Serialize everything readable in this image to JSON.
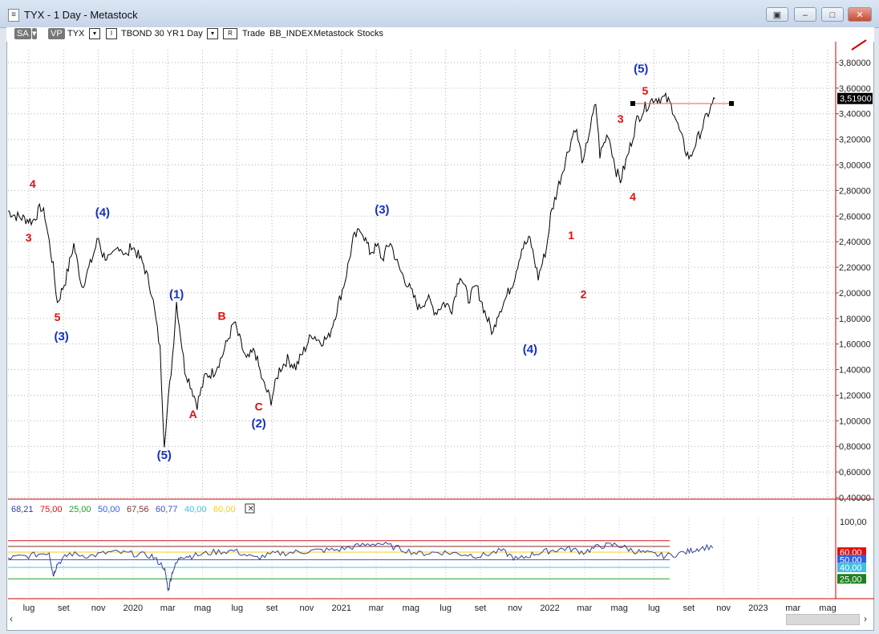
{
  "window": {
    "title": "TYX - 1 Day - Metastock",
    "app_icon": "chart-doc-icon"
  },
  "toolbar": {
    "sa": "SA",
    "vp": "VP",
    "symbol": "TYX",
    "i_box": "I",
    "description": "TBOND 30 YR",
    "period": "1 Day",
    "r_box": "R",
    "trade": "Trade",
    "index": "BB_INDEX",
    "source": "Metastock",
    "category": "Stocks"
  },
  "chart_data": [
    {
      "type": "line",
      "title": "",
      "xlabel": "",
      "ylabel": "",
      "ylim": [
        0.4,
        3.9
      ],
      "grid": true,
      "x_ticks": [
        "lug",
        "set",
        "nov",
        "2020",
        "mar",
        "mag",
        "lug",
        "set",
        "nov",
        "2021",
        "mar",
        "mag",
        "lug",
        "set",
        "nov",
        "2022",
        "mar",
        "mag",
        "lug",
        "set",
        "nov",
        "2023",
        "mar",
        "mag"
      ],
      "y_ticks": [
        "0,40000",
        "0,60000",
        "0,80000",
        "1,00000",
        "1,20000",
        "1,40000",
        "1,60000",
        "1,80000",
        "2,00000",
        "2,20000",
        "2,40000",
        "2,60000",
        "2,80000",
        "3,00000",
        "3,20000",
        "3,40000",
        "3,60000",
        "3,80000"
      ],
      "last_value_label": "3,51900",
      "series": [
        {
          "x": [
            0,
            2,
            4,
            6,
            8,
            9,
            11,
            12,
            14,
            16,
            18,
            20,
            22,
            23,
            25,
            27,
            29,
            30,
            33,
            35,
            37,
            38,
            40,
            41,
            43,
            44,
            46,
            48,
            50,
            52,
            55,
            58,
            60,
            62,
            64,
            66,
            68,
            70,
            72,
            74,
            76,
            78,
            80,
            82,
            84,
            86,
            88,
            90,
            91,
            93,
            95,
            97,
            100,
            102,
            104,
            106,
            108,
            110,
            112,
            114,
            116,
            118,
            119,
            121,
            123,
            125,
            127,
            129,
            131,
            132,
            134,
            136,
            138,
            140,
            141,
            143,
            144,
            146,
            148,
            149,
            151,
            153,
            155,
            157,
            160,
            161,
            162,
            163,
            165,
            166,
            167,
            168,
            169,
            170,
            171,
            172
          ],
          "y": [
            2.64,
            2.6,
            2.58,
            2.56,
            2.67,
            2.6,
            2.2,
            1.92,
            2.1,
            2.38,
            2.05,
            2.22,
            2.43,
            2.3,
            2.26,
            2.37,
            2.28,
            2.38,
            2.22,
            2.0,
            1.56,
            0.83,
            1.5,
            1.93,
            1.4,
            1.32,
            1.13,
            1.35,
            1.38,
            1.5,
            1.77,
            1.47,
            1.55,
            1.3,
            1.16,
            1.4,
            1.48,
            1.42,
            1.55,
            1.68,
            1.62,
            1.65,
            1.87,
            2.1,
            2.42,
            2.5,
            2.32,
            2.36,
            2.26,
            2.4,
            2.2,
            2.08,
            1.88,
            1.96,
            1.85,
            1.92,
            1.88,
            2.15,
            1.95,
            2.05,
            1.85,
            1.68,
            1.83,
            1.95,
            2.1,
            2.35,
            2.42,
            2.12,
            2.35,
            2.6,
            2.85,
            3.08,
            3.3,
            3.0,
            3.2,
            3.48,
            3.08,
            3.25,
            2.95,
            2.88,
            3.1,
            3.35,
            3.45,
            3.52,
            3.519,
            3.48,
            3.42,
            3.3,
            3.1,
            3.05,
            3.15,
            3.22,
            3.3,
            3.38,
            3.45,
            3.519
          ]
        }
      ],
      "annotations": [
        {
          "text": "4",
          "x": 6,
          "y": 2.82,
          "color": "red"
        },
        {
          "text": "3",
          "x": 5,
          "y": 2.4,
          "color": "red"
        },
        {
          "text": "5",
          "x": 12,
          "y": 1.78,
          "color": "red"
        },
        {
          "text": "(3)",
          "x": 13,
          "y": 1.63,
          "color": "blue"
        },
        {
          "text": "(4)",
          "x": 23,
          "y": 2.6,
          "color": "blue"
        },
        {
          "text": "(1)",
          "x": 41,
          "y": 1.96,
          "color": "blue"
        },
        {
          "text": "(5)",
          "x": 38,
          "y": 0.7,
          "color": "blue"
        },
        {
          "text": "A",
          "x": 45,
          "y": 1.02,
          "color": "red"
        },
        {
          "text": "B",
          "x": 52,
          "y": 1.79,
          "color": "red"
        },
        {
          "text": "C",
          "x": 61,
          "y": 1.08,
          "color": "red"
        },
        {
          "text": "(2)",
          "x": 61,
          "y": 0.95,
          "color": "blue"
        },
        {
          "text": "(3)",
          "x": 91,
          "y": 2.62,
          "color": "blue"
        },
        {
          "text": "(4)",
          "x": 127,
          "y": 1.53,
          "color": "blue"
        },
        {
          "text": "1",
          "x": 137,
          "y": 2.42,
          "color": "red"
        },
        {
          "text": "2",
          "x": 140,
          "y": 1.96,
          "color": "red"
        },
        {
          "text": "3",
          "x": 149,
          "y": 3.33,
          "color": "red"
        },
        {
          "text": "4",
          "x": 152,
          "y": 2.72,
          "color": "red"
        },
        {
          "text": "5",
          "x": 155,
          "y": 3.55,
          "color": "red"
        },
        {
          "text": "(5)",
          "x": 154,
          "y": 3.72,
          "color": "blue"
        }
      ],
      "trendline": {
        "from_x": 152,
        "to_x": 176,
        "y": 3.48,
        "color": "#e06030"
      }
    },
    {
      "type": "line",
      "title": "",
      "legend": [
        "68,21",
        "75,00",
        "25,00",
        "50,00",
        "67,56",
        "60,77",
        "40,00",
        "60,00"
      ],
      "y_tick_labels": [
        "100,00",
        "60,00",
        "50,00",
        "40,00",
        "25,00"
      ],
      "series": [
        {
          "x": [
            0,
            5,
            10,
            11,
            12,
            15,
            20,
            25,
            30,
            35,
            38,
            39,
            40,
            42,
            45,
            50,
            55,
            60,
            65,
            70,
            75,
            80,
            85,
            90,
            95,
            100,
            105,
            110,
            115,
            120,
            124,
            128,
            132,
            136,
            140,
            144,
            148,
            152,
            156,
            160,
            165,
            168,
            172
          ],
          "y": [
            52,
            55,
            60,
            30,
            45,
            58,
            55,
            60,
            58,
            55,
            40,
            10,
            35,
            55,
            55,
            60,
            62,
            52,
            58,
            60,
            62,
            63,
            68,
            72,
            65,
            58,
            60,
            58,
            55,
            62,
            50,
            58,
            62,
            65,
            60,
            68,
            70,
            62,
            58,
            55,
            60,
            65,
            68
          ]
        }
      ]
    }
  ]
}
